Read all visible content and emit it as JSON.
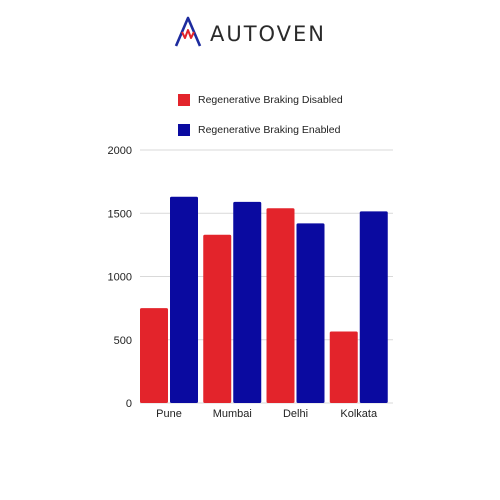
{
  "brand": {
    "name": "AUTOVEN",
    "icon": "autoven-logo-icon",
    "colors": {
      "outline": "#1d2b9e",
      "accent": "#e3242b"
    }
  },
  "chart_data": {
    "type": "bar",
    "categories": [
      "Pune",
      "Mumbai",
      "Delhi",
      "Kolkata"
    ],
    "series": [
      {
        "name": "Regenerative Braking Disabled",
        "color": "#e3242b",
        "values": [
          750,
          1330,
          1540,
          565
        ]
      },
      {
        "name": "Regenerative Braking Enabled",
        "color": "#0a0aa0",
        "values": [
          1630,
          1590,
          1420,
          1515
        ]
      }
    ],
    "yticks": [
      0,
      500,
      1000,
      1500,
      2000
    ],
    "ylim": [
      0,
      2000
    ],
    "grid": true,
    "legend_position": "top"
  }
}
